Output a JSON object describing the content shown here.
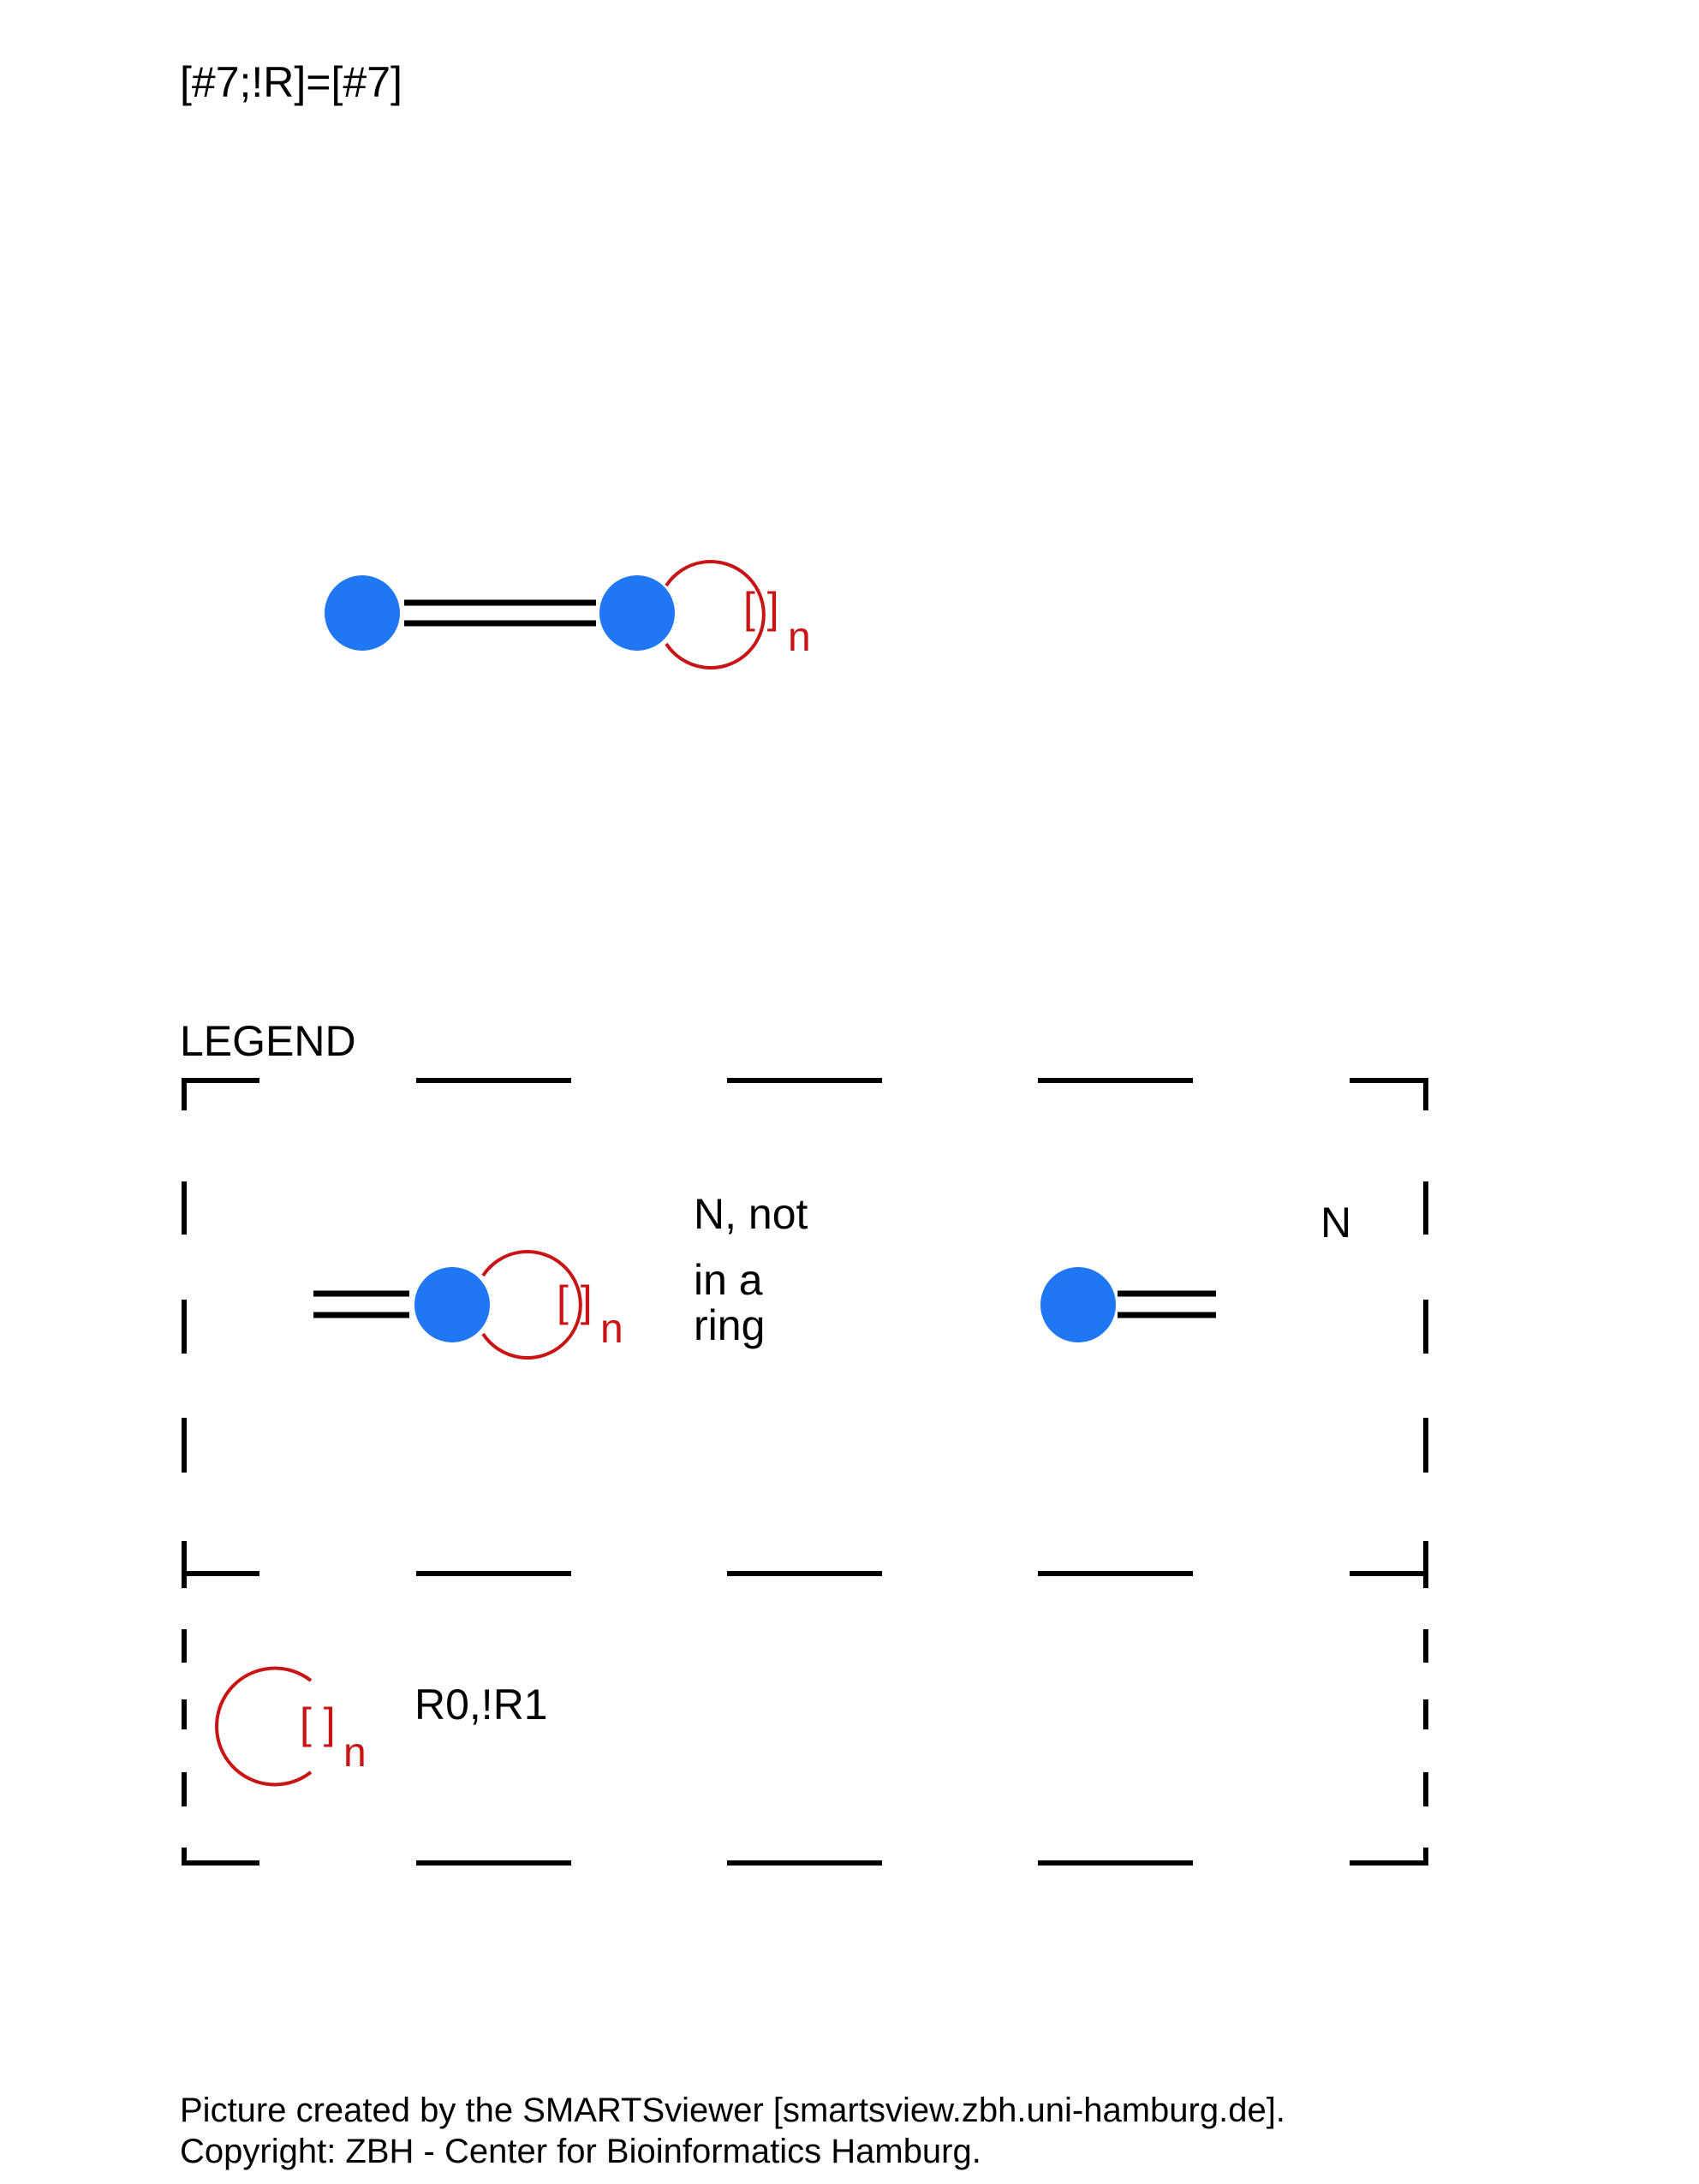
{
  "smarts": "[#7;!R]=[#7]",
  "ring_label": "n",
  "legend": {
    "title": "LEGEND",
    "entry1": {
      "line1": "N, not",
      "line2": "in a",
      "line3": "ring"
    },
    "entry2": {
      "label": "N"
    },
    "entry3": {
      "label": "R0,!R1"
    }
  },
  "footer": {
    "line1": "Picture created by the SMARTSviewer [smartsview.zbh.uni-hamburg.de].",
    "line2": "Copyright: ZBH - Center for Bioinformatics Hamburg."
  },
  "colors": {
    "atom": "#1f77f4",
    "ring": "#c81414",
    "bond": "#000000"
  }
}
